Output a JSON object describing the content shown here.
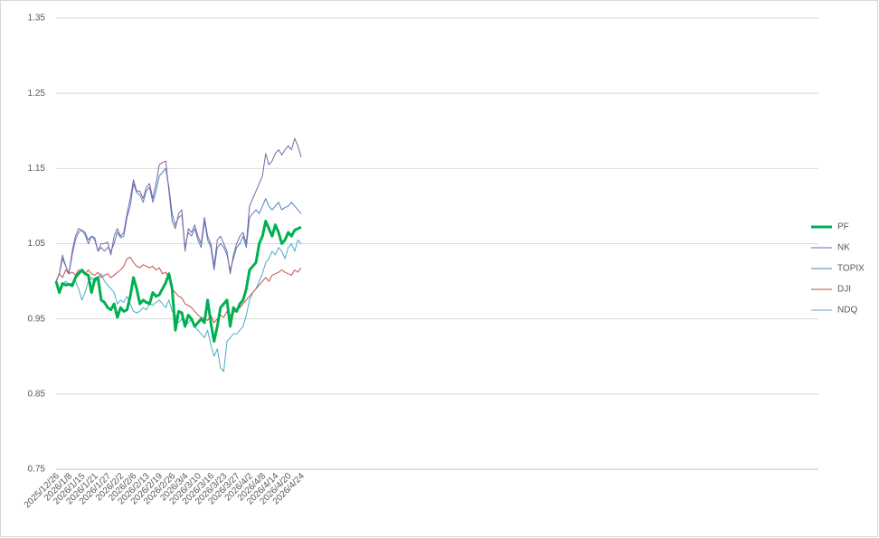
{
  "chart_data": {
    "type": "line",
    "categories": [
      "2025/12/26",
      null,
      null,
      null,
      "2026/1/8",
      null,
      null,
      null,
      "2026/1/15",
      null,
      null,
      null,
      "2026/1/21",
      null,
      null,
      null,
      "2026/1/27",
      null,
      null,
      null,
      "2026/2/2",
      null,
      null,
      null,
      "2026/2/6",
      null,
      null,
      null,
      "2026/2/13",
      null,
      null,
      null,
      "2026/2/19",
      null,
      null,
      null,
      "2026/2/26",
      null,
      null,
      null,
      "2026/3/4",
      null,
      null,
      null,
      "2026/3/10",
      null,
      null,
      null,
      "2026/3/16",
      null,
      null,
      null,
      "2026/3/23",
      null,
      null,
      null,
      "2026/3/27",
      null,
      null,
      null,
      "2026/4/2",
      null,
      null,
      null,
      "2026/4/8",
      null,
      null,
      null,
      "2026/4/14",
      null,
      null,
      null,
      "2026/4/20",
      null,
      null,
      null,
      "2026/4/24"
    ],
    "series": [
      {
        "name": "PF",
        "color": "#00b050",
        "values": [
          1.0,
          0.985,
          0.997,
          0.995,
          0.996,
          0.994,
          1.005,
          1.01,
          1.015,
          1.01,
          1.008,
          0.985,
          1.003,
          1.005,
          0.975,
          0.972,
          0.965,
          0.962,
          0.97,
          0.952,
          0.965,
          0.96,
          0.962,
          0.98,
          1.005,
          0.99,
          0.97,
          0.975,
          0.972,
          0.97,
          0.985,
          0.98,
          0.982,
          0.99,
          0.998,
          1.01,
          0.99,
          0.935,
          0.96,
          0.958,
          0.94,
          0.955,
          0.95,
          0.94,
          0.945,
          0.95,
          0.945,
          0.975,
          0.945,
          0.92,
          0.94,
          0.965,
          0.97,
          0.975,
          0.94,
          0.965,
          0.96,
          0.97,
          0.975,
          0.99,
          1.015,
          1.02,
          1.025,
          1.05,
          1.06,
          1.08,
          1.07,
          1.06,
          1.075,
          1.065,
          1.05,
          1.055,
          1.065,
          1.06,
          1.068,
          1.07,
          1.072
        ]
      },
      {
        "name": "NK",
        "color": "#8064a2",
        "values": [
          1.0,
          1.01,
          1.03,
          1.02,
          1.01,
          1.04,
          1.06,
          1.07,
          1.068,
          1.062,
          1.05,
          1.06,
          1.055,
          1.04,
          1.05,
          1.05,
          1.052,
          1.035,
          1.06,
          1.07,
          1.06,
          1.065,
          1.09,
          1.11,
          1.135,
          1.12,
          1.12,
          1.11,
          1.125,
          1.13,
          1.11,
          1.13,
          1.155,
          1.158,
          1.16,
          1.12,
          1.08,
          1.07,
          1.09,
          1.095,
          1.04,
          1.07,
          1.065,
          1.075,
          1.06,
          1.05,
          1.085,
          1.06,
          1.05,
          1.02,
          1.055,
          1.06,
          1.05,
          1.04,
          1.01,
          1.035,
          1.05,
          1.06,
          1.065,
          1.05,
          1.1,
          1.11,
          1.12,
          1.13,
          1.14,
          1.17,
          1.155,
          1.16,
          1.17,
          1.175,
          1.168,
          1.175,
          1.18,
          1.175,
          1.19,
          1.18,
          1.165
        ]
      },
      {
        "name": "TOPIX",
        "color": "#4f81bd",
        "values": [
          1.0,
          1.01,
          1.035,
          1.02,
          1.01,
          1.035,
          1.055,
          1.065,
          1.068,
          1.065,
          1.055,
          1.06,
          1.058,
          1.04,
          1.045,
          1.04,
          1.045,
          1.04,
          1.05,
          1.065,
          1.058,
          1.06,
          1.085,
          1.1,
          1.13,
          1.118,
          1.115,
          1.105,
          1.12,
          1.125,
          1.105,
          1.12,
          1.14,
          1.145,
          1.15,
          1.125,
          1.09,
          1.075,
          1.085,
          1.088,
          1.045,
          1.065,
          1.06,
          1.07,
          1.055,
          1.045,
          1.08,
          1.055,
          1.045,
          1.015,
          1.045,
          1.05,
          1.045,
          1.035,
          1.015,
          1.03,
          1.045,
          1.05,
          1.06,
          1.045,
          1.085,
          1.09,
          1.095,
          1.09,
          1.1,
          1.11,
          1.1,
          1.095,
          1.1,
          1.105,
          1.095,
          1.098,
          1.1,
          1.105,
          1.1,
          1.095,
          1.09
        ]
      },
      {
        "name": "DJI",
        "color": "#c0504d",
        "values": [
          1.0,
          1.01,
          1.005,
          1.015,
          1.01,
          1.012,
          1.008,
          1.015,
          1.012,
          1.01,
          1.015,
          1.01,
          1.008,
          1.012,
          1.005,
          1.008,
          1.01,
          1.005,
          1.008,
          1.012,
          1.015,
          1.02,
          1.03,
          1.032,
          1.025,
          1.02,
          1.018,
          1.022,
          1.02,
          1.018,
          1.02,
          1.015,
          1.018,
          1.01,
          1.012,
          1.005,
          0.99,
          0.985,
          0.98,
          0.978,
          0.97,
          0.968,
          0.965,
          0.96,
          0.955,
          0.952,
          0.95,
          0.948,
          0.955,
          0.945,
          0.95,
          0.955,
          0.952,
          0.96,
          0.955,
          0.958,
          0.962,
          0.965,
          0.97,
          0.975,
          0.98,
          0.985,
          0.99,
          0.995,
          1.0,
          1.005,
          1.0,
          1.008,
          1.01,
          1.012,
          1.015,
          1.012,
          1.01,
          1.008,
          1.015,
          1.012,
          1.018
        ]
      },
      {
        "name": "NDQ",
        "color": "#4bacc6",
        "values": [
          1.0,
          0.99,
          0.995,
          1.0,
          0.995,
          0.998,
          1.0,
          0.99,
          0.975,
          0.985,
          1.0,
          1.005,
          0.998,
          1.005,
          1.01,
          1.0,
          0.995,
          0.99,
          0.985,
          0.97,
          0.975,
          0.972,
          0.98,
          0.97,
          0.96,
          0.958,
          0.96,
          0.965,
          0.962,
          0.97,
          0.968,
          0.972,
          0.975,
          0.97,
          0.965,
          0.975,
          0.96,
          0.955,
          0.945,
          0.95,
          0.94,
          0.945,
          0.95,
          0.94,
          0.935,
          0.93,
          0.925,
          0.935,
          0.915,
          0.9,
          0.91,
          0.885,
          0.88,
          0.92,
          0.925,
          0.93,
          0.93,
          0.935,
          0.94,
          0.955,
          0.975,
          0.985,
          0.99,
          1.0,
          1.01,
          1.025,
          1.03,
          1.04,
          1.035,
          1.045,
          1.04,
          1.03,
          1.045,
          1.05,
          1.04,
          1.055,
          1.05
        ]
      }
    ],
    "ylim": [
      0.75,
      1.35
    ],
    "yticks": [
      0.75,
      0.85,
      0.95,
      1.05,
      1.15,
      1.25,
      1.35
    ],
    "grid": true,
    "legend": "right"
  }
}
